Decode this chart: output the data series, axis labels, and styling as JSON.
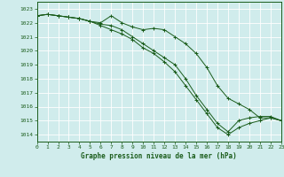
{
  "xlabel": "Graphe pression niveau de la mer (hPa)",
  "ylim": [
    1013.5,
    1023.5
  ],
  "xlim": [
    0,
    23
  ],
  "yticks": [
    1014,
    1015,
    1016,
    1017,
    1018,
    1019,
    1020,
    1021,
    1022,
    1023
  ],
  "xticks": [
    0,
    1,
    2,
    3,
    4,
    5,
    6,
    7,
    8,
    9,
    10,
    11,
    12,
    13,
    14,
    15,
    16,
    17,
    18,
    19,
    20,
    21,
    22,
    23
  ],
  "bg_color": "#d0ecec",
  "grid_color": "#b8d8d8",
  "line_color": "#1a5c1a",
  "lines": [
    [
      1022.5,
      1022.6,
      1022.5,
      1022.4,
      1022.3,
      1022.1,
      1022.0,
      1022.5,
      1022.0,
      1021.7,
      1021.5,
      1021.6,
      1021.5,
      1021.0,
      1020.5,
      1019.8,
      1018.8,
      1017.5,
      1016.6,
      1016.2,
      1015.8,
      1015.2,
      1015.2,
      1015.0
    ],
    [
      1022.5,
      1022.6,
      1022.5,
      1022.4,
      1022.3,
      1022.1,
      1021.8,
      1021.5,
      1021.2,
      1020.8,
      1020.2,
      1019.8,
      1019.2,
      1018.5,
      1017.5,
      1016.5,
      1015.5,
      1014.5,
      1014.0,
      1014.5,
      1014.8,
      1015.0,
      1015.2,
      1015.0
    ],
    [
      1022.5,
      1022.6,
      1022.5,
      1022.4,
      1022.3,
      1022.1,
      1021.9,
      1021.8,
      1021.5,
      1021.0,
      1020.5,
      1020.0,
      1019.5,
      1019.0,
      1018.0,
      1016.8,
      1015.8,
      1014.8,
      1014.2,
      1015.0,
      1015.2,
      1015.3,
      1015.3,
      1015.0
    ]
  ]
}
